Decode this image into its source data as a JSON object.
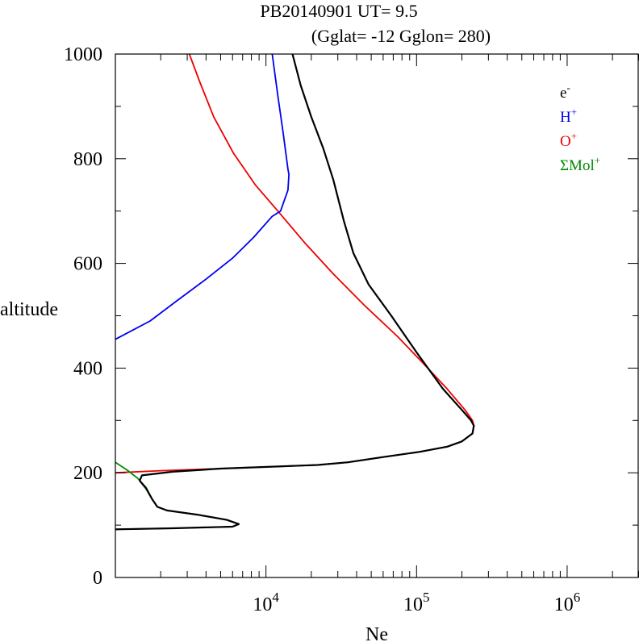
{
  "chart_data": {
    "type": "line",
    "title": "PB20140901   UT=  9.5",
    "subtitle": "(Gglat= -12   Gglon=  280)",
    "xlabel": "Ne",
    "ylabel": "altitude",
    "xscale": "log",
    "xlim": [
      1000,
      3000000
    ],
    "ylim": [
      0,
      1000
    ],
    "grid": false,
    "legend_position": "top-right",
    "x_ticks": [
      {
        "base": "10",
        "exp": "4",
        "value": 10000
      },
      {
        "base": "10",
        "exp": "5",
        "value": 100000
      },
      {
        "base": "10",
        "exp": "6",
        "value": 1000000
      }
    ],
    "y_ticks": [
      {
        "label": "0",
        "value": 0
      },
      {
        "label": "200",
        "value": 200
      },
      {
        "label": "400",
        "value": 400
      },
      {
        "label": "600",
        "value": 600
      },
      {
        "label": "800",
        "value": 800
      },
      {
        "label": "1000",
        "value": 1000
      }
    ],
    "series": [
      {
        "name": "e-",
        "legend_base": "e",
        "legend_sup": "-",
        "color": "#000000",
        "points": [
          [
            15000,
            1000
          ],
          [
            17000,
            940
          ],
          [
            20000,
            880
          ],
          [
            24000,
            820
          ],
          [
            28000,
            760
          ],
          [
            33000,
            680
          ],
          [
            38000,
            620
          ],
          [
            48000,
            560
          ],
          [
            68000,
            500
          ],
          [
            100000,
            430
          ],
          [
            150000,
            360
          ],
          [
            200000,
            320
          ],
          [
            230000,
            300
          ],
          [
            240000,
            290
          ],
          [
            235000,
            275
          ],
          [
            200000,
            260
          ],
          [
            160000,
            250
          ],
          [
            105000,
            240
          ],
          [
            60000,
            230
          ],
          [
            35000,
            220
          ],
          [
            22000,
            215
          ],
          [
            12000,
            212
          ],
          [
            5000,
            208
          ],
          [
            2400,
            202
          ],
          [
            1500,
            195
          ],
          [
            1450,
            185
          ],
          [
            1600,
            170
          ],
          [
            1750,
            150
          ],
          [
            1900,
            135
          ],
          [
            2200,
            128
          ],
          [
            3500,
            120
          ],
          [
            5500,
            110
          ],
          [
            6600,
            102
          ],
          [
            6000,
            97
          ],
          [
            2400,
            94
          ],
          [
            1000,
            92
          ]
        ]
      },
      {
        "name": "H+",
        "legend_base": "H",
        "legend_sup": "+",
        "color": "#0000ee",
        "points": [
          [
            11000,
            1000
          ],
          [
            12000,
            920
          ],
          [
            13000,
            850
          ],
          [
            14000,
            780
          ],
          [
            14200,
            770
          ],
          [
            14000,
            740
          ],
          [
            12500,
            700
          ],
          [
            11000,
            690
          ],
          [
            8300,
            650
          ],
          [
            6000,
            610
          ],
          [
            4000,
            570
          ],
          [
            2600,
            530
          ],
          [
            1700,
            490
          ],
          [
            1000,
            455
          ]
        ]
      },
      {
        "name": "O+",
        "legend_base": "O",
        "legend_sup": "+",
        "color": "#ee0000",
        "points": [
          [
            3100,
            1000
          ],
          [
            3600,
            950
          ],
          [
            4500,
            880
          ],
          [
            6100,
            810
          ],
          [
            8500,
            750
          ],
          [
            12000,
            700
          ],
          [
            18000,
            640
          ],
          [
            28000,
            580
          ],
          [
            45000,
            520
          ],
          [
            75000,
            460
          ],
          [
            110000,
            410
          ],
          [
            160000,
            360
          ],
          [
            210000,
            320
          ],
          [
            235000,
            300
          ],
          [
            240000,
            290
          ],
          [
            235000,
            275
          ],
          [
            200000,
            260
          ],
          [
            160000,
            250
          ],
          [
            105000,
            240
          ],
          [
            60000,
            230
          ],
          [
            35000,
            220
          ],
          [
            22000,
            215
          ],
          [
            12000,
            212
          ],
          [
            5000,
            208
          ],
          [
            2000,
            204
          ],
          [
            1000,
            200
          ]
        ]
      },
      {
        "name": "ΣMol+",
        "legend_base": "ΣMol",
        "legend_sup": "+",
        "color": "#008800",
        "points": [
          [
            1000,
            220
          ],
          [
            1200,
            205
          ],
          [
            1400,
            190
          ],
          [
            1600,
            172
          ],
          [
            1750,
            150
          ],
          [
            1900,
            135
          ],
          [
            2200,
            128
          ],
          [
            3500,
            120
          ],
          [
            5500,
            110
          ],
          [
            6600,
            102
          ],
          [
            6000,
            97
          ],
          [
            2400,
            94
          ],
          [
            1000,
            92
          ]
        ]
      }
    ]
  }
}
